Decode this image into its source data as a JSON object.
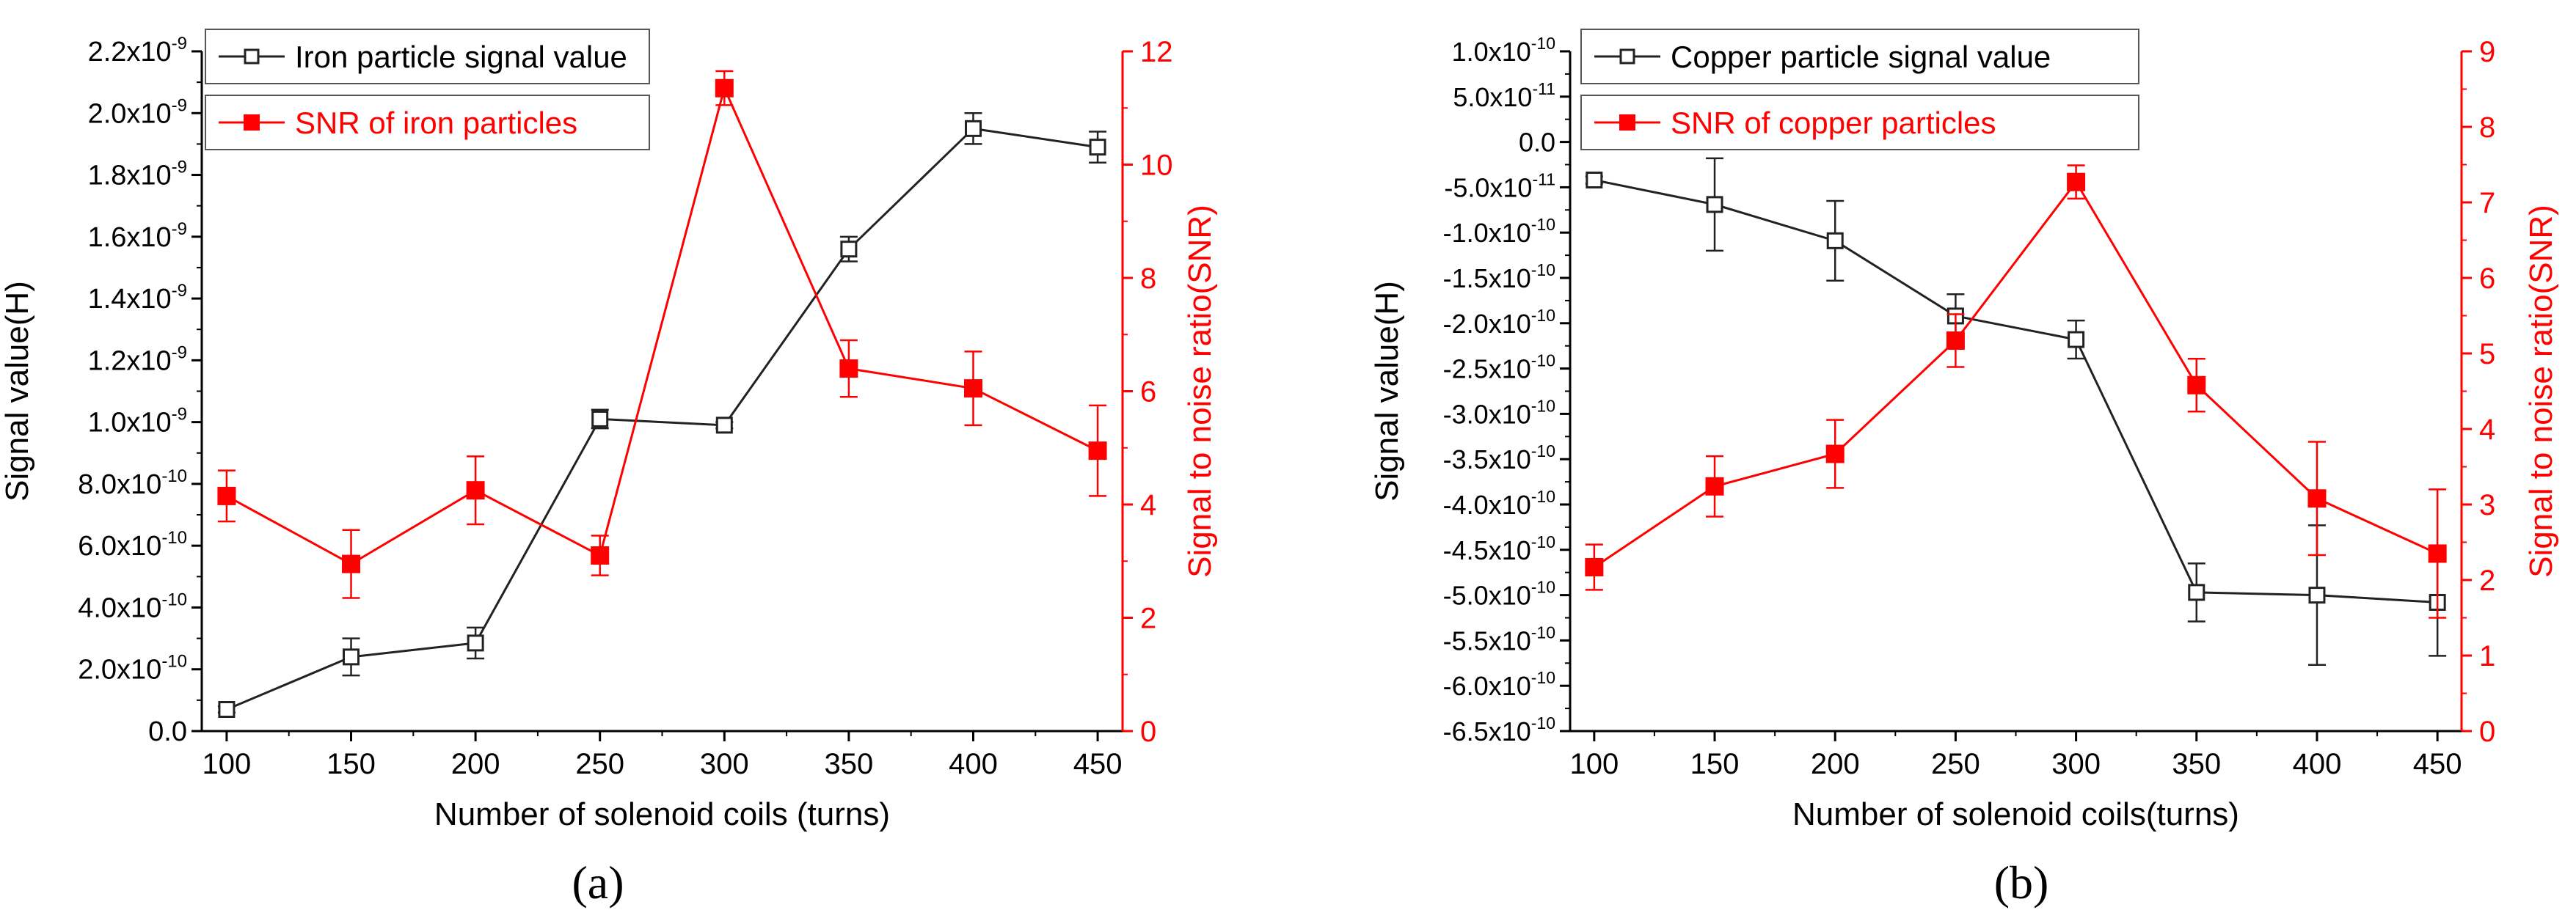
{
  "colors": {
    "signal": "#222222",
    "snr": "#ff0000",
    "axis_left": "#000000",
    "axis_right": "#ff0000",
    "background": "#ffffff"
  },
  "chart_data": [
    {
      "id": "a",
      "type": "line",
      "caption": "(a)",
      "xlabel": "Number of solenoid coils (turns)",
      "ylabel": "Signal value(H)",
      "y2label": "Signal to noise ratio(SNR)",
      "x": [
        100,
        150,
        200,
        250,
        300,
        350,
        400,
        450
      ],
      "xlim": [
        90,
        460
      ],
      "ylim": [
        0,
        2.2e-09
      ],
      "y2lim": [
        0,
        12
      ],
      "legend_position": "top-left",
      "y_ticks": [
        {
          "v": 0,
          "m": "0.0",
          "e": ""
        },
        {
          "v": 2e-10,
          "m": "2.0x10",
          "e": "-10"
        },
        {
          "v": 4e-10,
          "m": "4.0x10",
          "e": "-10"
        },
        {
          "v": 6e-10,
          "m": "6.0x10",
          "e": "-10"
        },
        {
          "v": 8e-10,
          "m": "8.0x10",
          "e": "-10"
        },
        {
          "v": 1e-09,
          "m": "1.0x10",
          "e": "-9"
        },
        {
          "v": 1.2e-09,
          "m": "1.2x10",
          "e": "-9"
        },
        {
          "v": 1.4e-09,
          "m": "1.4x10",
          "e": "-9"
        },
        {
          "v": 1.6e-09,
          "m": "1.6x10",
          "e": "-9"
        },
        {
          "v": 1.8e-09,
          "m": "1.8x10",
          "e": "-9"
        },
        {
          "v": 2e-09,
          "m": "2.0x10",
          "e": "-9"
        },
        {
          "v": 2.2e-09,
          "m": "2.2x10",
          "e": "-9"
        }
      ],
      "y2_ticks": [
        0,
        2,
        4,
        6,
        8,
        10,
        12
      ],
      "series": [
        {
          "name": "Iron particle signal value",
          "axis": "left",
          "marker": "open-square",
          "values": [
            7e-11,
            2.4e-10,
            2.85e-10,
            1.01e-09,
            9.9e-10,
            1.56e-09,
            1.95e-09,
            1.89e-09
          ],
          "errors": [
            1e-11,
            6e-11,
            5e-11,
            3e-11,
            1e-11,
            4e-11,
            5e-11,
            5e-11
          ]
        },
        {
          "name": "SNR of iron particles",
          "axis": "right",
          "marker": "filled-square",
          "values": [
            4.15,
            2.95,
            4.25,
            3.1,
            11.35,
            6.4,
            6.05,
            4.95
          ],
          "errors": [
            0.45,
            0.6,
            0.6,
            0.35,
            0.3,
            0.5,
            0.65,
            0.8
          ]
        }
      ]
    },
    {
      "id": "b",
      "type": "line",
      "caption": "(b)",
      "xlabel": "Number of solenoid coils(turns)",
      "ylabel": "Signal value(H)",
      "y2label": "Signal to noise ratio(SNR)",
      "x": [
        100,
        150,
        200,
        250,
        300,
        350,
        400,
        450
      ],
      "xlim": [
        90,
        460
      ],
      "ylim": [
        -6.5e-10,
        1e-10
      ],
      "y2lim": [
        0,
        9
      ],
      "legend_position": "top-left",
      "y_ticks": [
        {
          "v": 1e-10,
          "m": "1.0x10",
          "e": "-10"
        },
        {
          "v": 5e-11,
          "m": "5.0x10",
          "e": "-11"
        },
        {
          "v": 0,
          "m": "0.0",
          "e": ""
        },
        {
          "v": -5e-11,
          "m": "-5.0x10",
          "e": "-11"
        },
        {
          "v": -1e-10,
          "m": "-1.0x10",
          "e": "-10"
        },
        {
          "v": -1.5e-10,
          "m": "-1.5x10",
          "e": "-10"
        },
        {
          "v": -2e-10,
          "m": "-2.0x10",
          "e": "-10"
        },
        {
          "v": -2.5e-10,
          "m": "-2.5x10",
          "e": "-10"
        },
        {
          "v": -3e-10,
          "m": "-3.0x10",
          "e": "-10"
        },
        {
          "v": -3.5e-10,
          "m": "-3.5x10",
          "e": "-10"
        },
        {
          "v": -4e-10,
          "m": "-4.0x10",
          "e": "-10"
        },
        {
          "v": -4.5e-10,
          "m": "-4.5x10",
          "e": "-10"
        },
        {
          "v": -5e-10,
          "m": "-5.0x10",
          "e": "-10"
        },
        {
          "v": -5.5e-10,
          "m": "-5.5x10",
          "e": "-10"
        },
        {
          "v": -6e-10,
          "m": "-6.0x10",
          "e": "-10"
        },
        {
          "v": -6.5e-10,
          "m": "-6.5x10",
          "e": "-10"
        }
      ],
      "y2_ticks": [
        0,
        1,
        2,
        3,
        4,
        5,
        6,
        7,
        8,
        9
      ],
      "series": [
        {
          "name": "Copper particle signal value",
          "axis": "left",
          "marker": "open-square",
          "values": [
            -4.2e-11,
            -6.9e-11,
            -1.09e-10,
            -1.92e-10,
            -2.18e-10,
            -4.97e-10,
            -5e-10,
            -5.08e-10
          ],
          "errors": [
            4e-12,
            5.1e-11,
            4.4e-11,
            2.4e-11,
            2.1e-11,
            3.2e-11,
            7.7e-11,
            5.9e-11
          ]
        },
        {
          "name": "SNR of copper particles",
          "axis": "right",
          "marker": "filled-square",
          "values": [
            2.17,
            3.24,
            3.67,
            5.17,
            7.27,
            4.58,
            3.08,
            2.35
          ],
          "errors": [
            0.3,
            0.4,
            0.45,
            0.35,
            0.22,
            0.35,
            0.75,
            0.85
          ]
        }
      ]
    }
  ]
}
